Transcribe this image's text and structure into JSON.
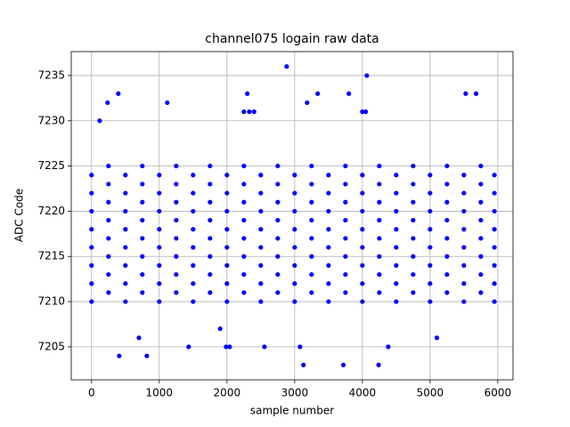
{
  "chart_data": {
    "type": "scatter",
    "title": "channel075 logain raw data",
    "x_label": "sample number",
    "y_label": "ADC Code",
    "color": "#0000ff",
    "grid": true,
    "xlim": [
      -300,
      6225
    ],
    "ylim": [
      7201.35,
      7237.65
    ],
    "xticks": [
      0,
      1000,
      2000,
      3000,
      4000,
      5000,
      6000
    ],
    "yticks": [
      7205,
      7210,
      7215,
      7220,
      7225,
      7230,
      7235
    ],
    "x": [
      0,
      500,
      1000,
      1500,
      2000,
      2500,
      3000,
      3500,
      4000,
      4500,
      5000,
      5500,
      5950,
      250,
      750,
      1250,
      1750,
      2250,
      2750,
      3250,
      3750,
      4250,
      4750,
      5250,
      5750,
      0,
      500,
      1000,
      1500,
      2000,
      2500,
      3000,
      3500,
      4000,
      4500,
      5000,
      5500,
      5950,
      250,
      750,
      1250,
      1750,
      2250,
      2750,
      3250,
      3750,
      4250,
      4750,
      5250,
      5750,
      0,
      500,
      1000,
      1500,
      2000,
      2500,
      3000,
      3500,
      4000,
      4500,
      5000,
      5500,
      5950,
      250,
      750,
      1250,
      1750,
      2250,
      2750,
      3250,
      3750,
      4250,
      4750,
      5250,
      5750,
      0,
      500,
      1000,
      1500,
      2000,
      2500,
      3000,
      3500,
      4000,
      4500,
      5000,
      5500,
      5950,
      250,
      750,
      1250,
      1750,
      2250,
      2750,
      3250,
      3750,
      4250,
      4750,
      5250,
      5750,
      0,
      500,
      1000,
      1500,
      2000,
      2500,
      3000,
      3500,
      4000,
      4500,
      5000,
      5500,
      5950,
      250,
      750,
      1250,
      1750,
      2250,
      2750,
      3250,
      3750,
      4250,
      4750,
      5250,
      5750,
      0,
      500,
      1000,
      1500,
      2000,
      2500,
      3000,
      3500,
      4000,
      4500,
      5000,
      5500,
      5950,
      250,
      750,
      1250,
      1750,
      2250,
      2750,
      3250,
      3750,
      4250,
      4750,
      5250,
      5750,
      0,
      500,
      1000,
      1500,
      2000,
      2500,
      3000,
      3500,
      4000,
      4500,
      5000,
      5500,
      5950,
      250,
      750,
      1250,
      1750,
      2250,
      2750,
      3250,
      3750,
      4250,
      4750,
      5250,
      5750,
      0,
      500,
      1000,
      1500,
      2000,
      2500,
      3000,
      3500,
      4000,
      4500,
      5000,
      5500,
      5950,
      250,
      750,
      1250,
      1750,
      2250,
      2750,
      3250,
      3750,
      4250,
      4750,
      5250,
      5750,
      2882,
      4066,
      395,
      2300,
      3340,
      3800,
      5526,
      5680,
      237,
      1118,
      3184,
      3130,
      3720,
      4240,
      408,
      816,
      1434,
      1987,
      2040,
      2553,
      3079,
      4382,
      2250,
      2330,
      2400,
      4000,
      4050,
      120,
      700,
      1900,
      5100
    ],
    "y": [
      7210,
      7210,
      7210,
      7210,
      7210,
      7210,
      7210,
      7210,
      7210,
      7210,
      7210,
      7210,
      7210,
      7211,
      7211,
      7211,
      7211,
      7211,
      7211,
      7211,
      7211,
      7211,
      7211,
      7211,
      7211,
      7212,
      7212,
      7212,
      7212,
      7212,
      7212,
      7212,
      7212,
      7212,
      7212,
      7212,
      7212,
      7212,
      7213,
      7213,
      7213,
      7213,
      7213,
      7213,
      7213,
      7213,
      7213,
      7213,
      7213,
      7213,
      7214,
      7214,
      7214,
      7214,
      7214,
      7214,
      7214,
      7214,
      7214,
      7214,
      7214,
      7214,
      7214,
      7215,
      7215,
      7215,
      7215,
      7215,
      7215,
      7215,
      7215,
      7215,
      7215,
      7215,
      7215,
      7216,
      7216,
      7216,
      7216,
      7216,
      7216,
      7216,
      7216,
      7216,
      7216,
      7216,
      7216,
      7216,
      7217,
      7217,
      7217,
      7217,
      7217,
      7217,
      7217,
      7217,
      7217,
      7217,
      7217,
      7217,
      7218,
      7218,
      7218,
      7218,
      7218,
      7218,
      7218,
      7218,
      7218,
      7218,
      7218,
      7218,
      7218,
      7219,
      7219,
      7219,
      7219,
      7219,
      7219,
      7219,
      7219,
      7219,
      7219,
      7219,
      7219,
      7220,
      7220,
      7220,
      7220,
      7220,
      7220,
      7220,
      7220,
      7220,
      7220,
      7220,
      7220,
      7220,
      7221,
      7221,
      7221,
      7221,
      7221,
      7221,
      7221,
      7221,
      7221,
      7221,
      7221,
      7221,
      7222,
      7222,
      7222,
      7222,
      7222,
      7222,
      7222,
      7222,
      7222,
      7222,
      7222,
      7222,
      7222,
      7223,
      7223,
      7223,
      7223,
      7223,
      7223,
      7223,
      7223,
      7223,
      7223,
      7223,
      7223,
      7224,
      7224,
      7224,
      7224,
      7224,
      7224,
      7224,
      7224,
      7224,
      7224,
      7224,
      7224,
      7224,
      7225,
      7225,
      7225,
      7225,
      7225,
      7225,
      7225,
      7225,
      7225,
      7225,
      7225,
      7225,
      7236,
      7235,
      7233,
      7233,
      7233,
      7233,
      7233,
      7233,
      7232,
      7232,
      7232,
      7203,
      7203,
      7203,
      7204,
      7204,
      7205,
      7205,
      7205,
      7205,
      7205,
      7205,
      7231,
      7231,
      7231,
      7231,
      7231,
      7230,
      7206,
      7207,
      7206
    ]
  }
}
